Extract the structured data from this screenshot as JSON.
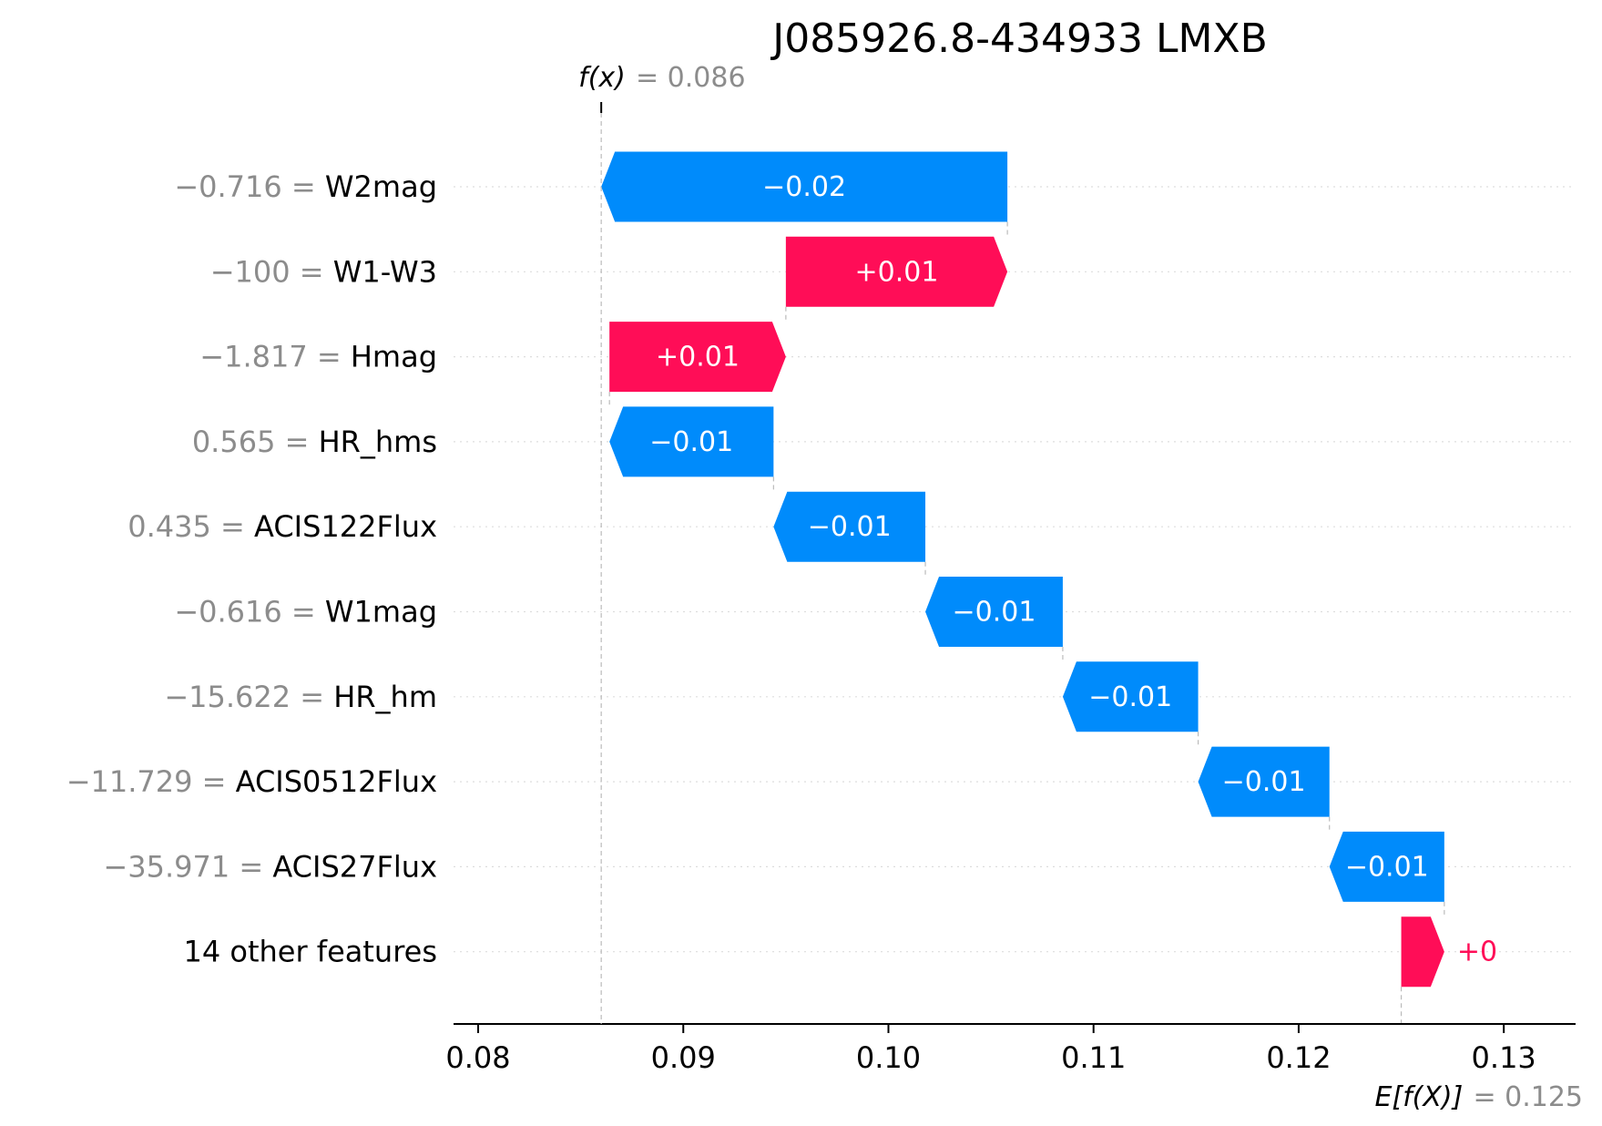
{
  "chart_data": {
    "type": "waterfall",
    "title": "J085926.8-434933 LMXB",
    "fx_label": "f(x)",
    "fx_eq": "= 0.086",
    "fx": 0.086,
    "efx_label": "E[f(X)]",
    "efx_eq": "= 0.125",
    "efx": 0.125,
    "xlim": [
      0.0788,
      0.1335
    ],
    "xticks": [
      0.08,
      0.09,
      0.1,
      0.11,
      0.12,
      0.13
    ],
    "xtick_labels": [
      "0.08",
      "0.09",
      "0.10",
      "0.11",
      "0.12",
      "0.13"
    ],
    "features": [
      {
        "value_label": "−0.716 =",
        "name": "W2mag",
        "start": 0.1058,
        "end": 0.086,
        "label": "−0.02"
      },
      {
        "value_label": "−100 =",
        "name": "W1-W3",
        "start": 0.095,
        "end": 0.1058,
        "label": "+0.01"
      },
      {
        "value_label": "−1.817 =",
        "name": "Hmag",
        "start": 0.0864,
        "end": 0.095,
        "label": "+0.01"
      },
      {
        "value_label": "0.565 =",
        "name": "HR_hms",
        "start": 0.0944,
        "end": 0.0864,
        "label": "−0.01"
      },
      {
        "value_label": "0.435 =",
        "name": "ACIS122Flux",
        "start": 0.1018,
        "end": 0.0944,
        "label": "−0.01"
      },
      {
        "value_label": "−0.616 =",
        "name": "W1mag",
        "start": 0.1085,
        "end": 0.1018,
        "label": "−0.01"
      },
      {
        "value_label": "−15.622 =",
        "name": "HR_hm",
        "start": 0.1151,
        "end": 0.1085,
        "label": "−0.01"
      },
      {
        "value_label": "−11.729 =",
        "name": "ACIS0512Flux",
        "start": 0.1215,
        "end": 0.1151,
        "label": "−0.01"
      },
      {
        "value_label": "−35.971 =",
        "name": "ACIS27Flux",
        "start": 0.1271,
        "end": 0.1215,
        "label": "−0.01"
      },
      {
        "value_label": "",
        "name": "14 other features",
        "start": 0.125,
        "end": 0.1271,
        "label": "+0"
      }
    ],
    "colors": {
      "positive": "#ff0d57",
      "negative": "#008bfb",
      "axis": "#000000",
      "muted": "#8c8c8c",
      "grid": "#dddddd",
      "connector": "#bbbbbb"
    }
  }
}
